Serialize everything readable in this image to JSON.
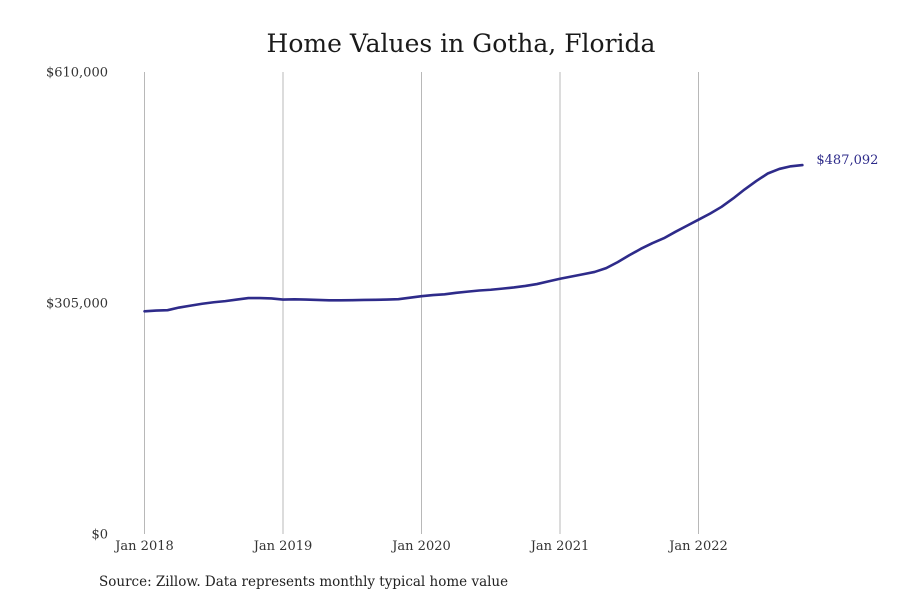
{
  "chart_data": {
    "type": "line",
    "title": "Home Values in Gotha, Florida",
    "xlabel": "",
    "ylabel": "",
    "ylim": [
      0,
      610000
    ],
    "y_ticks": [
      {
        "value": 0,
        "label": "$0"
      },
      {
        "value": 305000,
        "label": "$305,000"
      },
      {
        "value": 610000,
        "label": "$610,000"
      }
    ],
    "x_ticks": [
      {
        "value": "2018-01",
        "label": "Jan 2018"
      },
      {
        "value": "2019-01",
        "label": "Jan 2019"
      },
      {
        "value": "2020-01",
        "label": "Jan 2020"
      },
      {
        "value": "2021-01",
        "label": "Jan 2021"
      },
      {
        "value": "2022-01",
        "label": "Jan 2022"
      }
    ],
    "grid": "vertical",
    "legend": "none",
    "series": [
      {
        "color": "#2e2b8a",
        "end_label": "$487,092",
        "points": [
          [
            "2018-01",
            294000
          ],
          [
            "2018-02",
            295000
          ],
          [
            "2018-03",
            295500
          ],
          [
            "2018-04",
            299000
          ],
          [
            "2018-05",
            301500
          ],
          [
            "2018-06",
            304000
          ],
          [
            "2018-07",
            306000
          ],
          [
            "2018-08",
            307500
          ],
          [
            "2018-09",
            309500
          ],
          [
            "2018-10",
            311500
          ],
          [
            "2018-11",
            311500
          ],
          [
            "2018-12",
            311000
          ],
          [
            "2019-01",
            309500
          ],
          [
            "2019-02",
            309800
          ],
          [
            "2019-03",
            309500
          ],
          [
            "2019-04",
            309000
          ],
          [
            "2019-05",
            308500
          ],
          [
            "2019-06",
            308500
          ],
          [
            "2019-07",
            308700
          ],
          [
            "2019-08",
            309000
          ],
          [
            "2019-09",
            309200
          ],
          [
            "2019-10",
            309500
          ],
          [
            "2019-11",
            310000
          ],
          [
            "2019-12",
            312000
          ],
          [
            "2020-01",
            314000
          ],
          [
            "2020-02",
            315500
          ],
          [
            "2020-03",
            316500
          ],
          [
            "2020-04",
            318500
          ],
          [
            "2020-05",
            320000
          ],
          [
            "2020-06",
            321500
          ],
          [
            "2020-07",
            322500
          ],
          [
            "2020-08",
            324000
          ],
          [
            "2020-09",
            325500
          ],
          [
            "2020-10",
            327500
          ],
          [
            "2020-11",
            330000
          ],
          [
            "2020-12",
            333500
          ],
          [
            "2021-01",
            337000
          ],
          [
            "2021-02",
            340000
          ],
          [
            "2021-03",
            343000
          ],
          [
            "2021-04",
            346000
          ],
          [
            "2021-05",
            351000
          ],
          [
            "2021-06",
            359000
          ],
          [
            "2021-07",
            368000
          ],
          [
            "2021-08",
            376500
          ],
          [
            "2021-09",
            384000
          ],
          [
            "2021-10",
            390500
          ],
          [
            "2021-11",
            399000
          ],
          [
            "2021-12",
            407000
          ],
          [
            "2022-01",
            415000
          ],
          [
            "2022-02",
            423000
          ],
          [
            "2022-03",
            432000
          ],
          [
            "2022-04",
            443000
          ],
          [
            "2022-05",
            455000
          ],
          [
            "2022-06",
            466000
          ],
          [
            "2022-07",
            476000
          ],
          [
            "2022-08",
            482000
          ],
          [
            "2022-09",
            485500
          ],
          [
            "2022-10",
            487092
          ]
        ]
      }
    ]
  },
  "source_note": "Source: Zillow. Data represents monthly typical home value"
}
